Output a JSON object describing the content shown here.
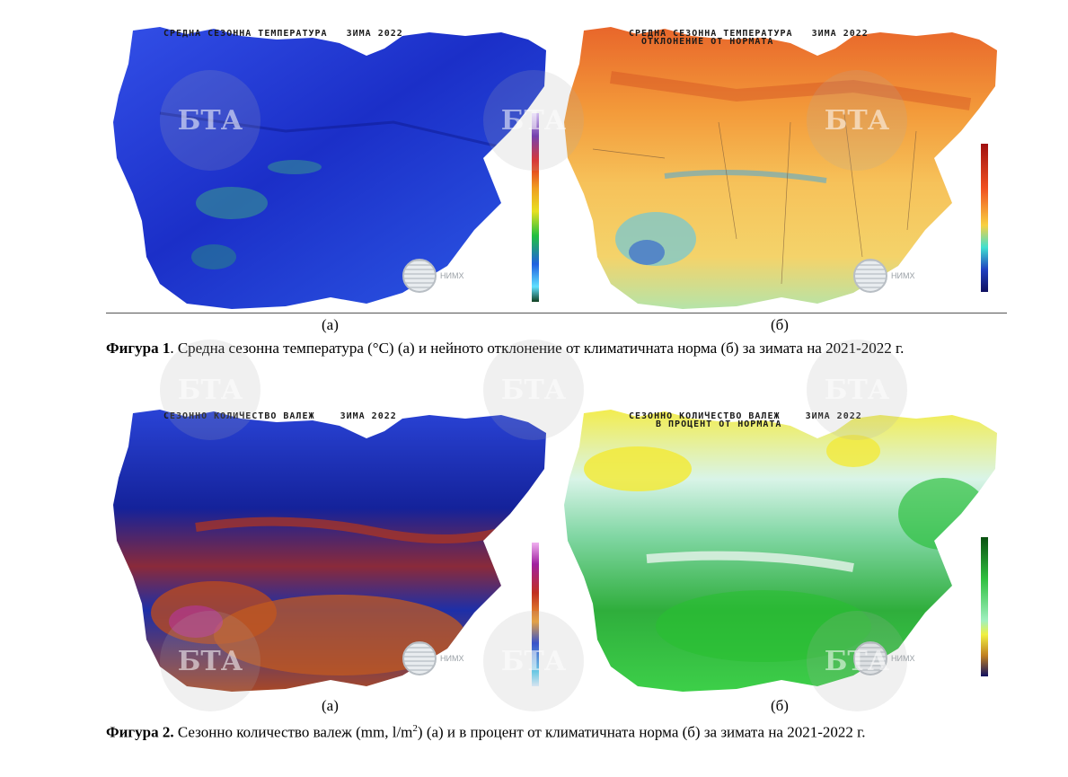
{
  "figure1": {
    "map_a": {
      "title": "СРЕДНА СЕЗОННА ТЕМПЕРАТУРА   ЗИМА 2022"
    },
    "map_b": {
      "title_line1": "СРЕДНА СЕЗОННА ТЕМПЕРАТУРА   ЗИМА 2022",
      "title_line2": "ОТКЛОНЕНИЕ ОТ НОРМАТА"
    },
    "label_a": "(а)",
    "label_b": "(б)",
    "caption_bold": "Фигура 1",
    "caption_text": ". Средна сезонна температура (°С) (а) и нейното отклонение от климатичната норма (б) за зимата на 2021-2022 г."
  },
  "figure2": {
    "map_a": {
      "title": "СЕЗОННО КОЛИЧЕСТВО ВАЛЕЖ    ЗИМА 2022"
    },
    "map_b": {
      "title_line1": "СЕЗОННО КОЛИЧЕСТВО ВАЛЕЖ    ЗИМА 2022",
      "title_line2": "В ПРОЦЕНТ ОТ НОРМАТА"
    },
    "label_a": "(а)",
    "label_b": "(б)",
    "caption_bold": "Фигура 2.",
    "caption_text_pre": " Сезонно количество валеж (mm, l/m",
    "caption_sup": "2",
    "caption_text_post": ") (а) и в процент от климатичната норма (б) за зимата на 2021-2022 г."
  },
  "logo_text": "НИМХ",
  "watermark_text": "БТА",
  "unit_mark": "°C",
  "colors": {
    "temp_map": "#1f3fd8",
    "anomaly_map": "#f2a23c",
    "precip_map": "#1a2fb0",
    "precip_pct_map": "#3bc24a"
  }
}
